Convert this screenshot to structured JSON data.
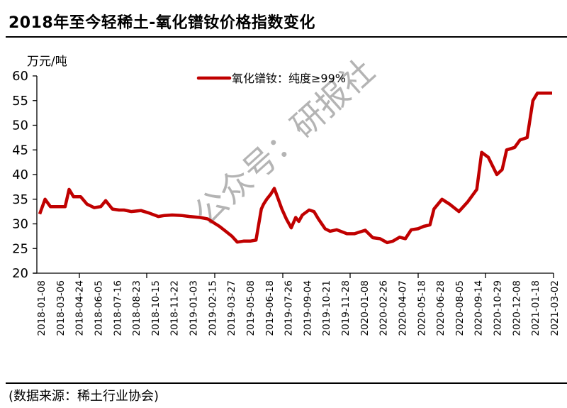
{
  "header": {
    "title": "2018年至今轻稀土-氧化镨钕价格指数变化"
  },
  "footer": {
    "source": "(数据来源：稀土行业协会)"
  },
  "watermark": {
    "text": "公众号：研报社"
  },
  "colors": {
    "series": "#c00000",
    "axis": "#000000",
    "watermark": "#b4b4b4"
  },
  "chart_data": {
    "type": "line",
    "title": "2018年至今轻稀土-氧化镨钕价格指数变化",
    "xlabel": "",
    "ylabel": "万元/吨",
    "ylim": [
      20,
      60
    ],
    "yticks": [
      20,
      25,
      30,
      35,
      40,
      45,
      50,
      55,
      60
    ],
    "grid": false,
    "legend_position": "top-center",
    "x_tick_labels": [
      "2018-01-08",
      "2018-03-06",
      "2018-04-24",
      "2018-06-05",
      "2018-07-16",
      "2018-08-23",
      "2018-10-15",
      "2018-11-22",
      "2019-01-03",
      "2019-02-15",
      "2019-03-27",
      "2019-05-08",
      "2019-06-18",
      "2019-07-26",
      "2019-09-04",
      "2019-10-21",
      "2019-11-28",
      "2020-01-08",
      "2020-02-26",
      "2020-04-07",
      "2020-05-18",
      "2020-06-28",
      "2020-08-05",
      "2020-09-14",
      "2020-10-29",
      "2020-12-08",
      "2021-01-18",
      "2021-03-02"
    ],
    "series": [
      {
        "name": "氧化镨钕：纯度≥99%",
        "x": [
          "2018-01-08",
          "2018-01-20",
          "2018-02-01",
          "2018-02-10",
          "2018-03-06",
          "2018-03-15",
          "2018-03-25",
          "2018-04-10",
          "2018-04-24",
          "2018-05-10",
          "2018-05-25",
          "2018-06-05",
          "2018-06-20",
          "2018-07-05",
          "2018-07-16",
          "2018-08-01",
          "2018-08-23",
          "2018-09-10",
          "2018-10-01",
          "2018-10-15",
          "2018-11-01",
          "2018-11-22",
          "2018-12-10",
          "2019-01-03",
          "2019-01-20",
          "2019-02-15",
          "2019-03-01",
          "2019-03-15",
          "2019-03-27",
          "2019-04-10",
          "2019-04-25",
          "2019-05-08",
          "2019-05-20",
          "2019-05-25",
          "2019-06-01",
          "2019-06-10",
          "2019-06-18",
          "2019-06-25",
          "2019-07-05",
          "2019-07-15",
          "2019-07-26",
          "2019-08-05",
          "2019-08-12",
          "2019-08-20",
          "2019-09-04",
          "2019-09-15",
          "2019-09-25",
          "2019-10-10",
          "2019-10-21",
          "2019-11-05",
          "2019-11-28",
          "2019-12-15",
          "2020-01-08",
          "2020-01-25",
          "2020-02-10",
          "2020-02-26",
          "2020-03-10",
          "2020-03-25",
          "2020-04-07",
          "2020-04-20",
          "2020-05-05",
          "2020-05-18",
          "2020-06-01",
          "2020-06-10",
          "2020-06-28",
          "2020-07-15",
          "2020-07-25",
          "2020-08-05",
          "2020-08-15",
          "2020-08-25",
          "2020-09-14",
          "2020-09-25",
          "2020-10-10",
          "2020-10-29",
          "2020-11-10",
          "2020-11-15",
          "2020-11-20",
          "2020-12-08",
          "2020-12-20",
          "2021-01-05",
          "2021-01-18",
          "2021-01-28",
          "2021-02-10",
          "2021-02-20",
          "2021-02-25",
          "2021-03-02"
        ],
        "values": [
          32.0,
          35.0,
          33.5,
          33.5,
          33.5,
          37.0,
          35.5,
          35.5,
          34.0,
          33.3,
          33.5,
          34.7,
          33.0,
          32.8,
          32.8,
          32.5,
          32.7,
          32.2,
          31.5,
          31.7,
          31.8,
          31.7,
          31.5,
          31.3,
          31.0,
          29.5,
          28.5,
          27.5,
          26.3,
          26.5,
          26.5,
          26.7,
          33.0,
          34.0,
          35.0,
          36.0,
          37.2,
          35.5,
          33.0,
          31.0,
          29.2,
          31.3,
          30.5,
          31.8,
          32.8,
          32.5,
          31.0,
          29.0,
          28.5,
          28.8,
          28.0,
          28.0,
          28.7,
          27.2,
          27.0,
          26.2,
          26.5,
          27.3,
          27.0,
          28.8,
          29.0,
          29.5,
          29.8,
          33.0,
          35.0,
          34.0,
          33.3,
          32.5,
          33.5,
          34.5,
          37.0,
          44.5,
          43.5,
          40.0,
          41.0,
          43.0,
          45.0,
          45.5,
          47.0,
          47.5,
          55.0,
          56.5,
          56.5,
          56.5,
          56.5,
          56.5
        ]
      }
    ]
  },
  "legend": {
    "label": "氧化镨钕：纯度≥99%"
  },
  "axes": {
    "y_unit": "万元/吨",
    "y_ticks": [
      "20",
      "25",
      "30",
      "35",
      "40",
      "45",
      "50",
      "55",
      "60"
    ]
  }
}
